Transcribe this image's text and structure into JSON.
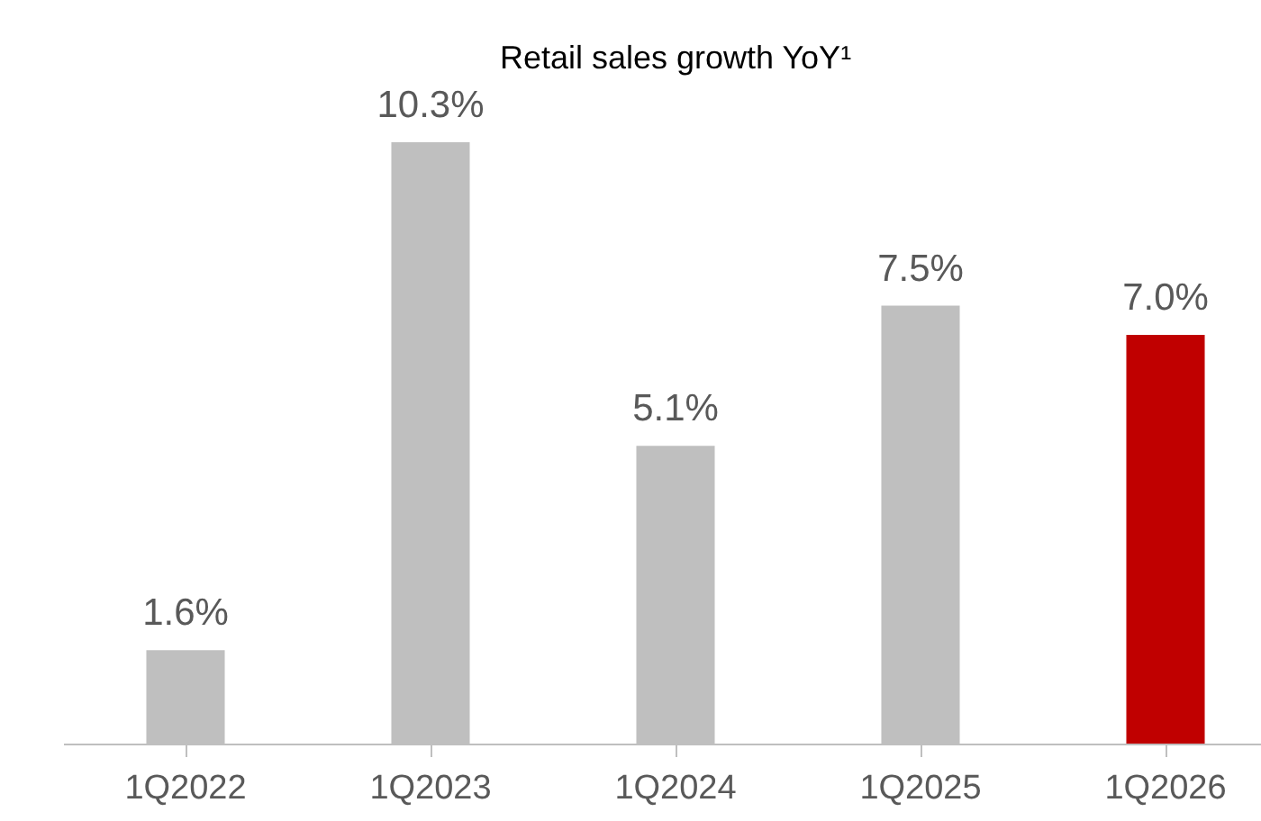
{
  "chart_data": {
    "type": "bar",
    "title": "Retail sales growth YoY¹",
    "categories": [
      "1Q2022",
      "1Q2023",
      "1Q2024",
      "1Q2025",
      "1Q2026"
    ],
    "values": [
      1.6,
      10.3,
      5.1,
      7.5,
      7.0
    ],
    "colors": [
      "#bfbfbf",
      "#bfbfbf",
      "#bfbfbf",
      "#bfbfbf",
      "#c00000"
    ],
    "value_labels": [
      "1.6%",
      "10.3%",
      "5.1%",
      "7.5%",
      "7.0%"
    ],
    "grid": false
  }
}
